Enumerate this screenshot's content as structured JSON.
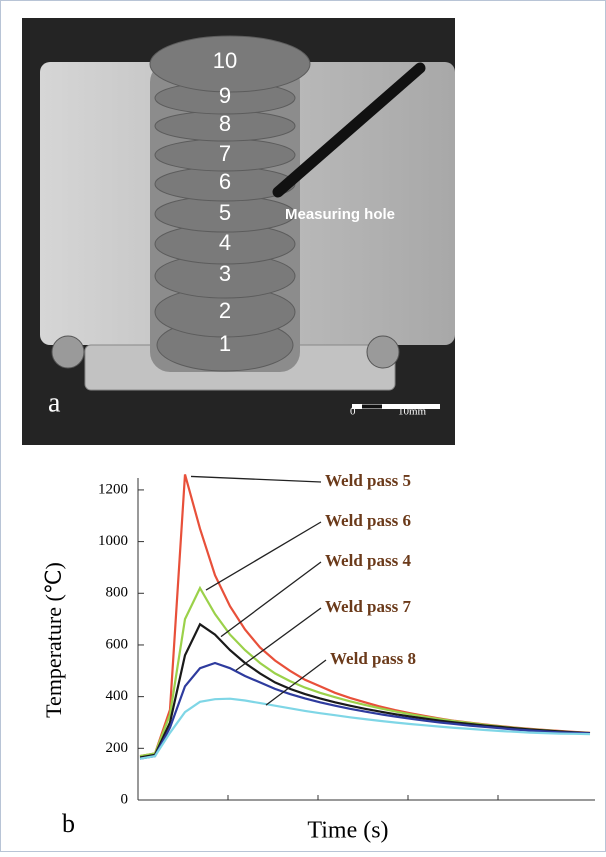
{
  "photo": {
    "panel_label": "a",
    "pass_numbers": [
      "10",
      "9",
      "8",
      "7",
      "6",
      "5",
      "4",
      "3",
      "2",
      "1"
    ],
    "hole_label": "Measuring hole",
    "scale_start": "0",
    "scale_end": "10mm"
  },
  "chart_data": {
    "type": "line",
    "panel_label": "b",
    "x_label": "Time (s)",
    "y_label": "Temperature (℃)",
    "categories": [
      null,
      null,
      null,
      null,
      null,
      null,
      null,
      null,
      null,
      null,
      null,
      null,
      null,
      null,
      null,
      null,
      null,
      null,
      null,
      null,
      null,
      null,
      null,
      null,
      null,
      null,
      null,
      null,
      null,
      null,
      null
    ],
    "ylim": [
      0,
      1250
    ],
    "yticks": [
      0,
      200,
      400,
      600,
      800,
      1000,
      1200
    ],
    "series": [
      {
        "name": "Weld pass 5",
        "color": "#e8503a",
        "values": [
          170,
          180,
          350,
          1260,
          1050,
          870,
          750,
          660,
          590,
          540,
          500,
          465,
          440,
          415,
          395,
          378,
          362,
          348,
          336,
          325,
          315,
          306,
          299,
          292,
          286,
          280,
          275,
          271,
          267,
          263,
          260
        ]
      },
      {
        "name": "Weld pass 6",
        "color": "#9bd14a",
        "values": [
          170,
          180,
          330,
          700,
          820,
          720,
          640,
          580,
          530,
          490,
          460,
          435,
          415,
          398,
          382,
          368,
          355,
          343,
          332,
          322,
          313,
          305,
          298,
          291,
          285,
          279,
          274,
          270,
          266,
          262,
          259
        ]
      },
      {
        "name": "Weld pass 4",
        "color": "#1a1a1a",
        "values": [
          165,
          175,
          300,
          560,
          680,
          640,
          580,
          530,
          490,
          455,
          430,
          410,
          393,
          378,
          365,
          353,
          342,
          332,
          323,
          315,
          307,
          300,
          294,
          288,
          283,
          278,
          273,
          269,
          265,
          262,
          259
        ]
      },
      {
        "name": "Weld pass 7",
        "color": "#2e3b9e",
        "values": [
          160,
          170,
          280,
          440,
          510,
          530,
          510,
          480,
          455,
          430,
          410,
          393,
          378,
          365,
          353,
          342,
          332,
          323,
          315,
          307,
          300,
          294,
          288,
          283,
          278,
          273,
          269,
          265,
          262,
          260,
          258
        ]
      },
      {
        "name": "Weld pass 8",
        "color": "#7fd6e6",
        "values": [
          160,
          170,
          260,
          340,
          380,
          390,
          392,
          385,
          375,
          365,
          355,
          345,
          336,
          328,
          320,
          313,
          306,
          300,
          294,
          289,
          284,
          279,
          275,
          271,
          267,
          264,
          261,
          259,
          257,
          256,
          255
        ]
      }
    ]
  }
}
